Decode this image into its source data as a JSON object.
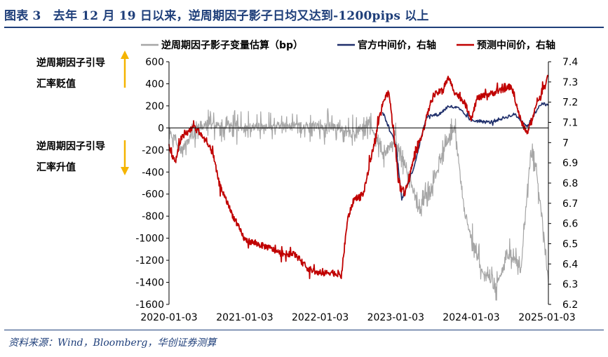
{
  "header": {
    "title": "图表 3　去年 12 月 19 日以来，逆周期因子影子日均又达到-1200pips 以上"
  },
  "footer": {
    "source": "资料来源：Wind，Bloomberg，华创证券测算"
  },
  "annotations": {
    "depreciation_line1": "逆周期因子引导",
    "depreciation_line2": "汇率贬值",
    "appreciation_line1": "逆周期因子引导",
    "appreciation_line2": "汇率升值"
  },
  "colors": {
    "title": "#1f3f7a",
    "shadow_series": "#a6a6a6",
    "official_series": "#1f2f6b",
    "predicted_series": "#c00000",
    "arrow": "#f5b400"
  },
  "chart_data": {
    "type": "line",
    "x_tick_labels": [
      "2020-01-03",
      "2021-01-03",
      "2022-01-03",
      "2023-01-03",
      "2024-01-03",
      "2025-01-03"
    ],
    "x_range": [
      "2020-01-03",
      "2025-01-10"
    ],
    "y_left": {
      "min": -1600,
      "max": 600,
      "step": 200,
      "tick_labels": [
        "600",
        "400",
        "200",
        "0",
        "-200",
        "-400",
        "-600",
        "-800",
        "-1000",
        "-1200",
        "-1400",
        "-1600"
      ]
    },
    "y_right": {
      "min": 6.2,
      "max": 7.4,
      "step": 0.1,
      "tick_labels": [
        "7.4",
        "7.3",
        "7.2",
        "7.1",
        "7",
        "6.9",
        "6.8",
        "6.7",
        "6.6",
        "6.5",
        "6.4",
        "6.3",
        "6.2"
      ]
    },
    "legend_position": "top",
    "series": [
      {
        "name": "逆周期因子影子变量估算（bp）",
        "axis": "left",
        "x": [
          "2020-01-03",
          "2020-03-01",
          "2020-06-01",
          "2020-09-01",
          "2021-01-03",
          "2021-06-01",
          "2021-12-01",
          "2022-03-01",
          "2022-06-01",
          "2022-09-01",
          "2022-11-01",
          "2023-01-03",
          "2023-03-01",
          "2023-05-01",
          "2023-07-01",
          "2023-09-01",
          "2023-10-15",
          "2023-12-01",
          "2024-01-03",
          "2024-03-01",
          "2024-05-01",
          "2024-07-01",
          "2024-09-01",
          "2024-10-15",
          "2024-11-15",
          "2024-12-15",
          "2025-01-10"
        ],
        "values": [
          0,
          -200,
          20,
          30,
          0,
          20,
          10,
          20,
          -60,
          60,
          -250,
          -100,
          -400,
          -750,
          -500,
          -150,
          0,
          -750,
          -1000,
          -1300,
          -1450,
          -1150,
          -1250,
          -200,
          -400,
          -900,
          -1400
        ]
      },
      {
        "name": "官方中间价，右轴",
        "axis": "right",
        "x": [
          "2022-11-01",
          "2023-01-03",
          "2023-02-01",
          "2023-04-01",
          "2023-06-01",
          "2023-08-01",
          "2023-09-15",
          "2023-11-01",
          "2024-01-03",
          "2024-04-01",
          "2024-06-01",
          "2024-08-01",
          "2024-10-01",
          "2024-12-01",
          "2025-01-10"
        ],
        "values": [
          7.15,
          6.99,
          6.72,
          6.88,
          7.13,
          7.14,
          7.18,
          7.17,
          7.11,
          7.1,
          7.12,
          7.14,
          7.08,
          7.19,
          7.19
        ]
      },
      {
        "name": "预测中间价，右轴",
        "axis": "right",
        "x": [
          "2020-01-03",
          "2020-02-01",
          "2020-03-01",
          "2020-05-01",
          "2020-06-01",
          "2020-08-01",
          "2020-09-01",
          "2020-11-01",
          "2021-01-03",
          "2021-03-01",
          "2021-05-01",
          "2021-07-01",
          "2021-09-01",
          "2021-11-01",
          "2022-01-03",
          "2022-03-01",
          "2022-04-15",
          "2022-05-15",
          "2022-06-15",
          "2022-08-01",
          "2022-09-15",
          "2022-11-01",
          "2022-12-01",
          "2023-01-03",
          "2023-01-15",
          "2023-02-15",
          "2023-04-01",
          "2023-05-15",
          "2023-06-30",
          "2023-08-15",
          "2023-09-15",
          "2023-10-15",
          "2023-12-01",
          "2024-01-03",
          "2024-02-01",
          "2024-04-01",
          "2024-06-01",
          "2024-07-15",
          "2024-09-01",
          "2024-10-01",
          "2024-11-01",
          "2024-12-15",
          "2025-01-10"
        ],
        "values": [
          6.98,
          6.9,
          7.02,
          7.08,
          7.05,
          6.95,
          6.8,
          6.65,
          6.52,
          6.5,
          6.48,
          6.45,
          6.45,
          6.38,
          6.35,
          6.36,
          6.34,
          6.62,
          6.72,
          6.75,
          6.97,
          7.2,
          7.25,
          6.96,
          6.82,
          6.75,
          6.92,
          7.06,
          7.23,
          7.26,
          7.32,
          7.25,
          7.2,
          7.12,
          7.22,
          7.24,
          7.26,
          7.28,
          7.1,
          7.05,
          7.15,
          7.27,
          7.33
        ]
      }
    ]
  }
}
